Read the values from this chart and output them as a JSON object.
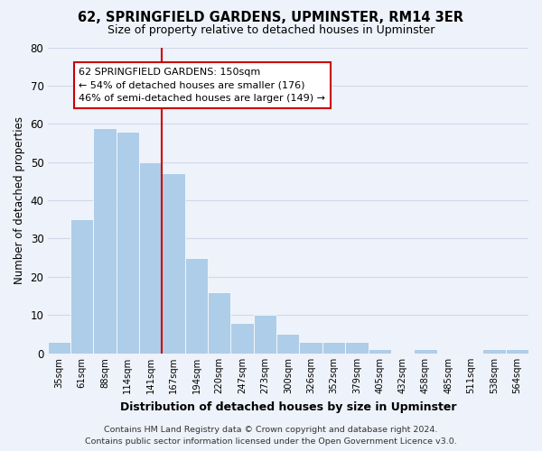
{
  "title": "62, SPRINGFIELD GARDENS, UPMINSTER, RM14 3ER",
  "subtitle": "Size of property relative to detached houses in Upminster",
  "xlabel": "Distribution of detached houses by size in Upminster",
  "ylabel": "Number of detached properties",
  "footer_line1": "Contains HM Land Registry data © Crown copyright and database right 2024.",
  "footer_line2": "Contains public sector information licensed under the Open Government Licence v3.0.",
  "bar_labels": [
    "35sqm",
    "61sqm",
    "88sqm",
    "114sqm",
    "141sqm",
    "167sqm",
    "194sqm",
    "220sqm",
    "247sqm",
    "273sqm",
    "300sqm",
    "326sqm",
    "352sqm",
    "379sqm",
    "405sqm",
    "432sqm",
    "458sqm",
    "485sqm",
    "511sqm",
    "538sqm",
    "564sqm"
  ],
  "bar_values": [
    3,
    35,
    59,
    58,
    50,
    47,
    25,
    16,
    8,
    10,
    5,
    3,
    3,
    3,
    1,
    0,
    1,
    0,
    0,
    1,
    1
  ],
  "bar_color": "#aecde8",
  "bar_edge_color": "#aecde8",
  "grid_color": "#d0d8e8",
  "background_color": "#eef2fa",
  "vline_x_index": 4,
  "vline_color": "#cc0000",
  "annotation_text": "62 SPRINGFIELD GARDENS: 150sqm\n← 54% of detached houses are smaller (176)\n46% of semi-detached houses are larger (149) →",
  "annotation_box_color": "#ffffff",
  "annotation_box_edge_color": "#cc0000",
  "ylim": [
    0,
    80
  ],
  "yticks": [
    0,
    10,
    20,
    30,
    40,
    50,
    60,
    70,
    80
  ],
  "title_fontsize": 10.5,
  "subtitle_fontsize": 9
}
